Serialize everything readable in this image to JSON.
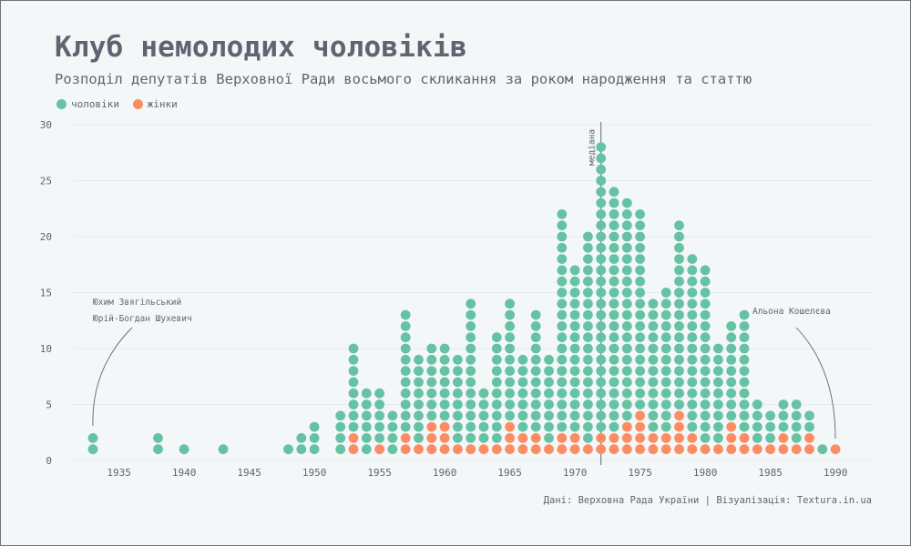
{
  "title": "Клуб немолодих чоловіків",
  "subtitle": "Розподіл депутатів Верховної Ради восьмого скликання за роком народження та статтю",
  "legend": {
    "men_label": "чоловіки",
    "women_label": "жінки"
  },
  "source": "Дані: Верховна Рада України | Візуалізація: Textura.in.ua",
  "colors": {
    "men": "#66c2a5",
    "women": "#fc8d62",
    "grid": "#e3e8ea",
    "axis_text": "#5e6570"
  },
  "chart_data": {
    "type": "scatter",
    "xlim": [
      1932,
      1991
    ],
    "ylim": [
      0,
      30
    ],
    "x_ticks": [
      1935,
      1940,
      1945,
      1950,
      1955,
      1960,
      1965,
      1970,
      1975,
      1980,
      1985,
      1990
    ],
    "y_ticks": [
      0,
      5,
      10,
      15,
      20,
      25,
      30
    ],
    "grid": "horizontal",
    "legend_position": "top-left",
    "series": [
      {
        "name": "чоловіки",
        "years": [
          1933,
          1938,
          1940,
          1943,
          1948,
          1949,
          1950,
          1952,
          1953,
          1954,
          1955,
          1956,
          1957,
          1958,
          1959,
          1960,
          1961,
          1962,
          1963,
          1964,
          1965,
          1966,
          1967,
          1968,
          1969,
          1970,
          1971,
          1972,
          1973,
          1974,
          1975,
          1976,
          1977,
          1978,
          1979,
          1980,
          1981,
          1982,
          1983,
          1984,
          1985,
          1986,
          1987,
          1988,
          1989,
          1990
        ],
        "counts": [
          2,
          2,
          1,
          1,
          1,
          2,
          3,
          4,
          8,
          6,
          5,
          4,
          11,
          8,
          7,
          7,
          8,
          13,
          5,
          10,
          11,
          7,
          11,
          8,
          20,
          15,
          19,
          26,
          22,
          20,
          18,
          12,
          13,
          17,
          16,
          16,
          9,
          9,
          11,
          4,
          3,
          3,
          4,
          2,
          1,
          0
        ]
      },
      {
        "name": "жінки",
        "years": [
          1933,
          1938,
          1940,
          1943,
          1948,
          1949,
          1950,
          1952,
          1953,
          1954,
          1955,
          1956,
          1957,
          1958,
          1959,
          1960,
          1961,
          1962,
          1963,
          1964,
          1965,
          1966,
          1967,
          1968,
          1969,
          1970,
          1971,
          1972,
          1973,
          1974,
          1975,
          1976,
          1977,
          1978,
          1979,
          1980,
          1981,
          1982,
          1983,
          1984,
          1985,
          1986,
          1987,
          1988,
          1989,
          1990
        ],
        "counts": [
          0,
          0,
          0,
          0,
          0,
          0,
          0,
          0,
          2,
          0,
          1,
          0,
          2,
          1,
          3,
          3,
          1,
          1,
          1,
          1,
          3,
          2,
          2,
          1,
          2,
          2,
          1,
          2,
          2,
          3,
          4,
          2,
          2,
          4,
          2,
          1,
          1,
          3,
          2,
          1,
          1,
          2,
          1,
          2,
          0,
          1
        ]
      }
    ],
    "annotations": [
      {
        "label": "медіана",
        "year": 1972
      },
      {
        "label": "Юхим Звягільський",
        "year": 1933
      },
      {
        "label": "Юрій-Богдан Шухевич",
        "year": 1933
      },
      {
        "label": "Альона Кошелєва",
        "year": 1990
      }
    ]
  }
}
